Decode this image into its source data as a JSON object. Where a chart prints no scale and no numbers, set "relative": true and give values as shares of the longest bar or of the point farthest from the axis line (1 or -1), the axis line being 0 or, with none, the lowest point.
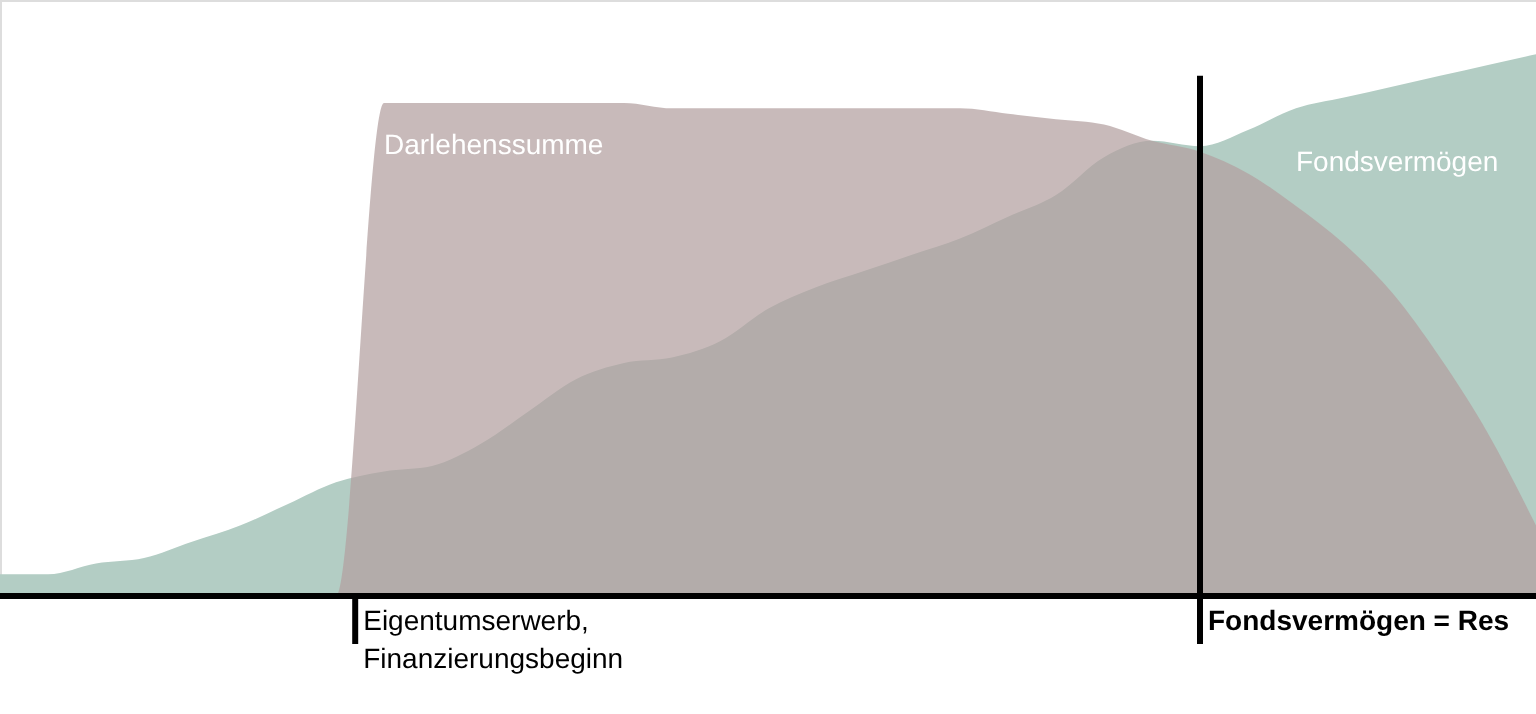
{
  "chart_data": {
    "type": "area",
    "relative": true,
    "categories": [
      null,
      null,
      null,
      null,
      null,
      null,
      null,
      null,
      null,
      null,
      null,
      null,
      null,
      null,
      null,
      null,
      null,
      null,
      null,
      null,
      null,
      null,
      null,
      null,
      null,
      null,
      null,
      null,
      null,
      null,
      null,
      null,
      null
    ],
    "series": [
      {
        "name": "Fondsvermögen",
        "color": "#b3cdc4",
        "values": [
          0.04,
          0.04,
          0.06,
          0.07,
          0.1,
          0.13,
          0.17,
          0.21,
          0.23,
          0.24,
          0.28,
          0.34,
          0.4,
          0.43,
          0.44,
          0.47,
          0.53,
          0.57,
          0.6,
          0.63,
          0.66,
          0.7,
          0.74,
          0.81,
          0.84,
          0.83,
          0.86,
          0.9,
          0.92,
          0.94,
          0.96,
          0.98,
          1
        ]
      },
      {
        "name": "Darlehenssumme",
        "color": "#b39fa0",
        "values": [
          0,
          0,
          0,
          0,
          0,
          0,
          0,
          0,
          0.91,
          0.91,
          0.91,
          0.91,
          0.91,
          0.91,
          0.9,
          0.9,
          0.9,
          0.9,
          0.9,
          0.9,
          0.9,
          0.89,
          0.88,
          0.87,
          0.84,
          0.82,
          0.78,
          0.72,
          0.65,
          0.56,
          0.44,
          0.3,
          0.13
        ]
      }
    ],
    "annotations": [
      "Eigentumserwerb,\nFinanzierungsbeginn",
      "Fondsvermögen = Res"
    ]
  }
}
